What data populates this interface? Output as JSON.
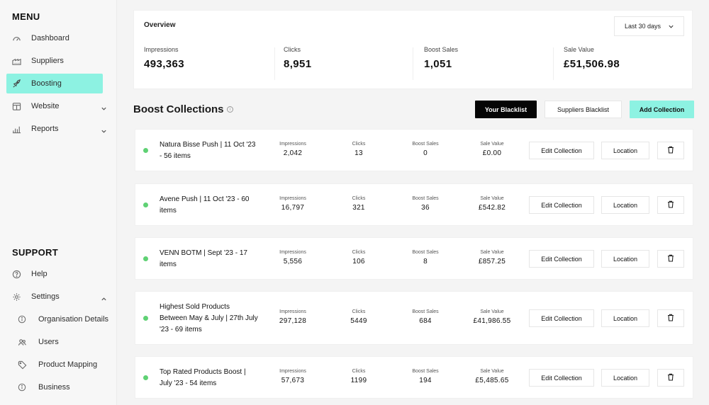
{
  "sidebar": {
    "menu_title": "MENU",
    "menu_items": [
      {
        "label": "Dashboard",
        "icon": "dashboard-icon"
      },
      {
        "label": "Suppliers",
        "icon": "suppliers-icon"
      },
      {
        "label": "Boosting",
        "icon": "rocket-icon",
        "active": true
      },
      {
        "label": "Website",
        "icon": "website-icon",
        "has_submenu": true
      },
      {
        "label": "Reports",
        "icon": "reports-icon",
        "has_submenu": true
      }
    ],
    "support_title": "SUPPORT",
    "support_items": [
      {
        "label": "Help",
        "icon": "help-icon"
      },
      {
        "label": "Settings",
        "icon": "settings-icon",
        "expanded": true
      }
    ],
    "settings_subitems": [
      {
        "label": "Organisation Details",
        "icon": "info-icon"
      },
      {
        "label": "Users",
        "icon": "users-icon"
      },
      {
        "label": "Product Mapping",
        "icon": "tag-icon"
      },
      {
        "label": "Business",
        "icon": "info-icon"
      }
    ]
  },
  "overview": {
    "title": "Overview",
    "period": "Last 30 days",
    "stats": [
      {
        "label": "Impressions",
        "value": "493,363"
      },
      {
        "label": "Clicks",
        "value": "8,951"
      },
      {
        "label": "Boost Sales",
        "value": "1,051"
      },
      {
        "label": "Sale Value",
        "value": "£51,506.98"
      }
    ]
  },
  "collections": {
    "title": "Boost Collections",
    "your_blacklist": "Your Blacklist",
    "suppliers_blacklist": "Suppliers Blacklist",
    "add_collection": "Add Collection",
    "metric_labels": {
      "impressions": "Impressions",
      "clicks": "Clicks",
      "boost_sales": "Boost Sales",
      "sale_value": "Sale Value"
    },
    "edit_label": "Edit Collection",
    "location_label": "Location",
    "rows": [
      {
        "name": "Natura Bisse Push | 11 Oct '23 - 56 items",
        "impressions": "2,042",
        "clicks": "13",
        "boost_sales": "0",
        "sale_value": "£0.00"
      },
      {
        "name": "Avene Push | 11 Oct '23 - 60 items",
        "impressions": "16,797",
        "clicks": "321",
        "boost_sales": "36",
        "sale_value": "£542.82"
      },
      {
        "name": "VENN BOTM | Sept '23 - 17 items",
        "impressions": "5,556",
        "clicks": "106",
        "boost_sales": "8",
        "sale_value": "£857.25"
      },
      {
        "name": "Highest Sold Products Between May & July | 27th July '23 - 69 items",
        "impressions": "297,128",
        "clicks": "5449",
        "boost_sales": "684",
        "sale_value": "£41,986.55"
      },
      {
        "name": "Top Rated Products Boost | July '23 - 54 items",
        "impressions": "57,673",
        "clicks": "1199",
        "boost_sales": "194",
        "sale_value": "£5,485.65"
      }
    ]
  },
  "colors": {
    "accent": "#8df2e2",
    "active_dot": "#5fd174",
    "dark_button": "#050505"
  }
}
